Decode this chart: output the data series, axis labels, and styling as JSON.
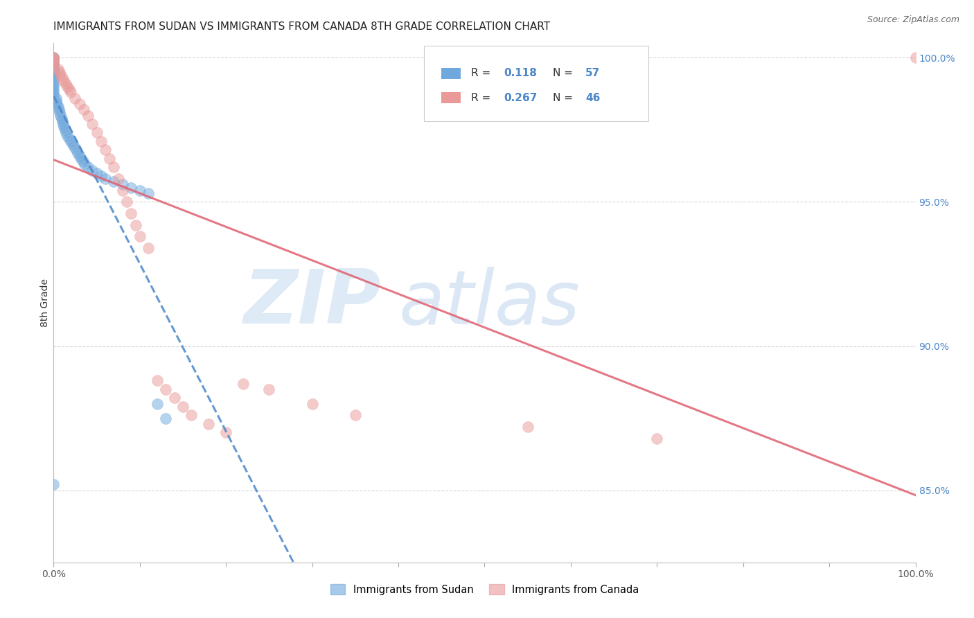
{
  "title": "IMMIGRANTS FROM SUDAN VS IMMIGRANTS FROM CANADA 8TH GRADE CORRELATION CHART",
  "source": "Source: ZipAtlas.com",
  "ylabel": "8th Grade",
  "sudan_R": 0.118,
  "sudan_N": 57,
  "canada_R": 0.267,
  "canada_N": 46,
  "sudan_color": "#6fa8dc",
  "canada_color": "#ea9999",
  "sudan_line_color": "#4a86c8",
  "canada_line_color": "#e06070",
  "legend_sudan": "Immigrants from Sudan",
  "legend_canada": "Immigrants from Canada",
  "background_color": "#ffffff",
  "grid_color": "#cccccc",
  "axis_label_color": "#4a86c8",
  "title_fontsize": 11,
  "watermark_zip_color": "#c8ddf0",
  "watermark_atlas_color": "#b8d0ea",
  "sudan_x": [
    0.0,
    0.0,
    0.0,
    0.0,
    0.0,
    0.0,
    0.0,
    0.0,
    0.0,
    0.0,
    0.0,
    0.0,
    0.0,
    0.0,
    0.0,
    0.0,
    0.0,
    0.0,
    0.0,
    0.0,
    0.003,
    0.003,
    0.004,
    0.005,
    0.006,
    0.007,
    0.008,
    0.009,
    0.01,
    0.011,
    0.012,
    0.013,
    0.014,
    0.016,
    0.018,
    0.02,
    0.022,
    0.024,
    0.026,
    0.028,
    0.03,
    0.032,
    0.034,
    0.036,
    0.04,
    0.045,
    0.05,
    0.055,
    0.06,
    0.07,
    0.08,
    0.09,
    0.1,
    0.11,
    0.12,
    0.13,
    0.0
  ],
  "sudan_y": [
    1.0,
    1.0,
    0.999,
    0.999,
    0.998,
    0.998,
    0.997,
    0.997,
    0.996,
    0.996,
    0.995,
    0.995,
    0.994,
    0.993,
    0.992,
    0.991,
    0.99,
    0.989,
    0.988,
    0.987,
    0.986,
    0.985,
    0.984,
    0.983,
    0.982,
    0.981,
    0.98,
    0.979,
    0.978,
    0.977,
    0.976,
    0.975,
    0.974,
    0.973,
    0.972,
    0.971,
    0.97,
    0.969,
    0.968,
    0.967,
    0.966,
    0.965,
    0.964,
    0.963,
    0.962,
    0.961,
    0.96,
    0.959,
    0.958,
    0.957,
    0.956,
    0.955,
    0.954,
    0.953,
    0.88,
    0.875,
    0.852
  ],
  "canada_x": [
    0.0,
    0.0,
    0.0,
    0.0,
    0.0,
    0.0,
    0.005,
    0.007,
    0.008,
    0.01,
    0.012,
    0.014,
    0.016,
    0.018,
    0.02,
    0.025,
    0.03,
    0.035,
    0.04,
    0.045,
    0.05,
    0.055,
    0.06,
    0.065,
    0.07,
    0.075,
    0.08,
    0.085,
    0.09,
    0.095,
    0.1,
    0.11,
    0.12,
    0.13,
    0.14,
    0.15,
    0.16,
    0.18,
    0.2,
    0.22,
    0.25,
    0.3,
    0.35,
    0.55,
    0.7,
    1.0
  ],
  "canada_y": [
    1.0,
    1.0,
    0.999,
    0.999,
    0.998,
    0.997,
    0.996,
    0.995,
    0.994,
    0.993,
    0.992,
    0.991,
    0.99,
    0.989,
    0.988,
    0.986,
    0.984,
    0.982,
    0.98,
    0.977,
    0.974,
    0.971,
    0.968,
    0.965,
    0.962,
    0.958,
    0.954,
    0.95,
    0.946,
    0.942,
    0.938,
    0.934,
    0.888,
    0.885,
    0.882,
    0.879,
    0.876,
    0.873,
    0.87,
    0.887,
    0.885,
    0.88,
    0.876,
    0.872,
    0.868,
    1.0
  ],
  "xlim": [
    0.0,
    1.0
  ],
  "ylim": [
    0.825,
    1.005
  ],
  "y_ticks": [
    0.85,
    0.9,
    0.95,
    1.0
  ],
  "y_tick_labels": [
    "85.0%",
    "90.0%",
    "95.0%",
    "100.0%"
  ]
}
